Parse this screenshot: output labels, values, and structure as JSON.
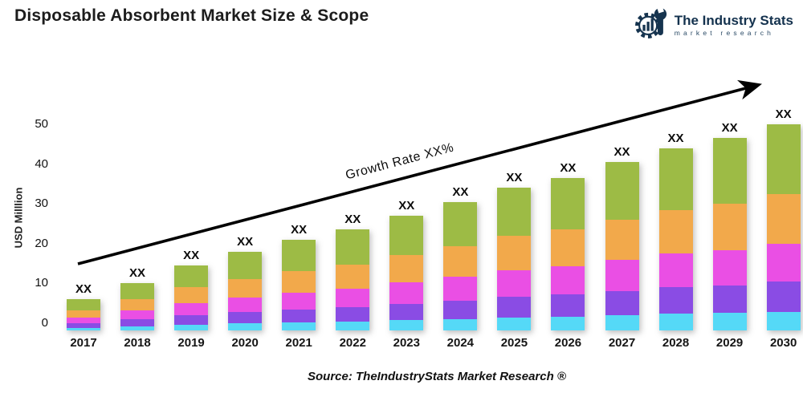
{
  "header": {
    "title": "Disposable Absorbent Market Size & Scope",
    "logo": {
      "name": "The Industry Stats",
      "tagline": "market research",
      "color": "#14324e"
    }
  },
  "chart_data": {
    "type": "bar",
    "stacked": true,
    "title": "Disposable Absorbent Market Size & Scope",
    "xlabel": "",
    "ylabel": "USD Milllion",
    "ylim": [
      0,
      55
    ],
    "yticks": [
      0,
      10,
      20,
      30,
      40,
      50
    ],
    "grid": false,
    "legend": "none",
    "categories": [
      "2017",
      "2018",
      "2019",
      "2020",
      "2021",
      "2022",
      "2023",
      "2024",
      "2025",
      "2026",
      "2027",
      "2028",
      "2029",
      "2030"
    ],
    "series": [
      {
        "name": "cyan-bottom-segment",
        "color": "#55d9f7",
        "values": [
          0.5,
          0.9,
          1.3,
          1.6,
          1.9,
          2.1,
          2.4,
          2.7,
          3.1,
          3.3,
          3.6,
          4.0,
          4.2,
          4.5
        ]
      },
      {
        "name": "purple-segment",
        "color": "#8a4ce4",
        "values": [
          0.9,
          1.5,
          2.1,
          2.6,
          3.0,
          3.4,
          3.9,
          4.4,
          4.9,
          5.3,
          5.9,
          6.4,
          6.7,
          7.3
        ]
      },
      {
        "name": "magenta-segment",
        "color": "#ea4fe4",
        "values": [
          1.1,
          1.9,
          2.7,
          3.3,
          3.9,
          4.3,
          5.0,
          5.6,
          6.3,
          6.8,
          7.5,
          8.1,
          8.6,
          9.3
        ]
      },
      {
        "name": "orange-segment",
        "color": "#f2a94b",
        "values": [
          1.4,
          2.4,
          3.5,
          4.3,
          5.0,
          5.6,
          6.5,
          7.3,
          8.2,
          8.8,
          9.7,
          10.6,
          11.2,
          12.0
        ]
      },
      {
        "name": "green-top-segment",
        "color": "#9dbb45",
        "values": [
          2.1,
          3.3,
          4.9,
          6.2,
          7.2,
          8.1,
          9.2,
          10.5,
          11.5,
          12.3,
          13.8,
          14.9,
          15.8,
          16.9
        ]
      }
    ],
    "totals": [
      6,
      10,
      14.5,
      18,
      21,
      23.5,
      27,
      30.5,
      34,
      36.5,
      40.5,
      44,
      46.5,
      50
    ],
    "bar_value_label": "XX",
    "annotation": {
      "growth_label": "Growth Rate XX%",
      "arrow_color": "#000000"
    }
  },
  "footer": {
    "source": "Source: TheIndustryStats Market Research ®"
  }
}
